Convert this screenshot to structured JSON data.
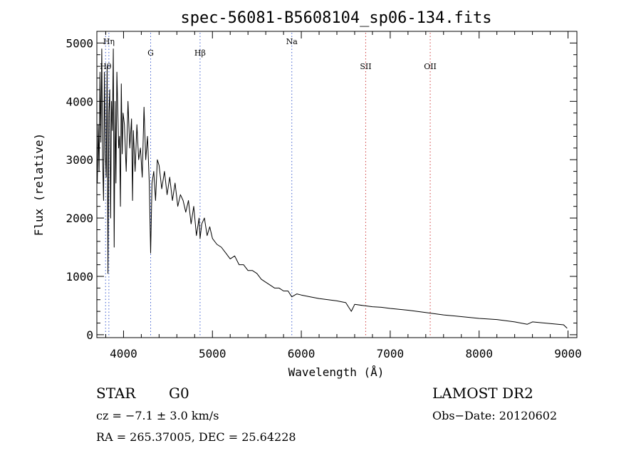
{
  "chart_data": {
    "type": "line",
    "title": "spec-56081-B5608104_sp06-134.fits",
    "xlabel": "Wavelength (Å)",
    "ylabel": "Flux (relative)",
    "xlim": [
      3700,
      9100
    ],
    "ylim": [
      -50,
      5200
    ],
    "xticks": [
      4000,
      5000,
      6000,
      7000,
      8000,
      9000
    ],
    "yticks": [
      0,
      1000,
      2000,
      3000,
      4000,
      5000
    ],
    "grid": false,
    "line_color": "#000000",
    "marker_color_red": "#d04040",
    "marker_color_blue": "#4060d0",
    "series": [
      {
        "x": [
          3705,
          3715,
          3725,
          3735,
          3745,
          3755,
          3765,
          3775,
          3785,
          3795,
          3805,
          3815,
          3825,
          3835,
          3845,
          3855,
          3865,
          3875,
          3885,
          3895,
          3905,
          3915,
          3925,
          3935,
          3945,
          3955,
          3965,
          3975,
          3985,
          3995,
          4010,
          4030,
          4050,
          4070,
          4090,
          4101,
          4110,
          4130,
          4150,
          4170,
          4190,
          4210,
          4230,
          4250,
          4270,
          4290,
          4305,
          4320,
          4340,
          4360,
          4380,
          4400,
          4430,
          4460,
          4490,
          4520,
          4550,
          4580,
          4610,
          4640,
          4670,
          4700,
          4730,
          4760,
          4790,
          4820,
          4850,
          4861,
          4880,
          4910,
          4940,
          4970,
          5000,
          5050,
          5100,
          5150,
          5200,
          5250,
          5300,
          5350,
          5400,
          5450,
          5500,
          5550,
          5600,
          5650,
          5700,
          5750,
          5800,
          5850,
          5893,
          5950,
          6000,
          6100,
          6200,
          6300,
          6400,
          6500,
          6563,
          6600,
          6700,
          6800,
          6900,
          7000,
          7200,
          7400,
          7600,
          7800,
          8000,
          8200,
          8400,
          8542,
          8600,
          8800,
          8950,
          8990
        ],
        "y": [
          2600,
          3600,
          2800,
          4500,
          3300,
          4900,
          3000,
          2300,
          4500,
          3100,
          2700,
          4600,
          1050,
          3800,
          4200,
          2000,
          4000,
          3500,
          4900,
          1500,
          4000,
          2600,
          4500,
          3900,
          3200,
          3400,
          2200,
          4300,
          3100,
          3800,
          3600,
          2800,
          4000,
          3200,
          3700,
          2300,
          3500,
          2800,
          3600,
          3000,
          3200,
          2700,
          3900,
          3000,
          3400,
          2600,
          1400,
          2600,
          2800,
          2300,
          3000,
          2900,
          2500,
          2800,
          2400,
          2700,
          2300,
          2600,
          2200,
          2400,
          2300,
          2100,
          2300,
          1900,
          2200,
          1700,
          2000,
          1650,
          1900,
          2000,
          1700,
          1850,
          1650,
          1550,
          1500,
          1400,
          1300,
          1350,
          1200,
          1200,
          1100,
          1100,
          1050,
          950,
          900,
          850,
          800,
          800,
          750,
          750,
          650,
          700,
          680,
          650,
          620,
          600,
          580,
          550,
          400,
          520,
          500,
          480,
          470,
          450,
          420,
          380,
          340,
          310,
          280,
          260,
          220,
          180,
          220,
          190,
          170,
          110
        ]
      }
    ],
    "markers": [
      {
        "label": "Hη",
        "x": 3835,
        "color": "blue"
      },
      {
        "label": "Hθ",
        "x": 3798,
        "color": "blue"
      },
      {
        "label": "G",
        "x": 4305,
        "color": "blue"
      },
      {
        "label": "Hβ",
        "x": 4861,
        "color": "blue"
      },
      {
        "label": "Na",
        "x": 5893,
        "color": "blue"
      },
      {
        "label": "SII",
        "x": 6724,
        "color": "red"
      },
      {
        "label": "OII",
        "x": 7450,
        "color": "red"
      }
    ]
  },
  "info": {
    "class": "STAR",
    "subclass": "G0",
    "survey": "LAMOST DR2",
    "cz": "cz = −7.1 ± 3.0 km/s",
    "obs_date": "Obs−Date: 20120602",
    "coords": "RA = 265.37005, DEC =  25.64228"
  }
}
